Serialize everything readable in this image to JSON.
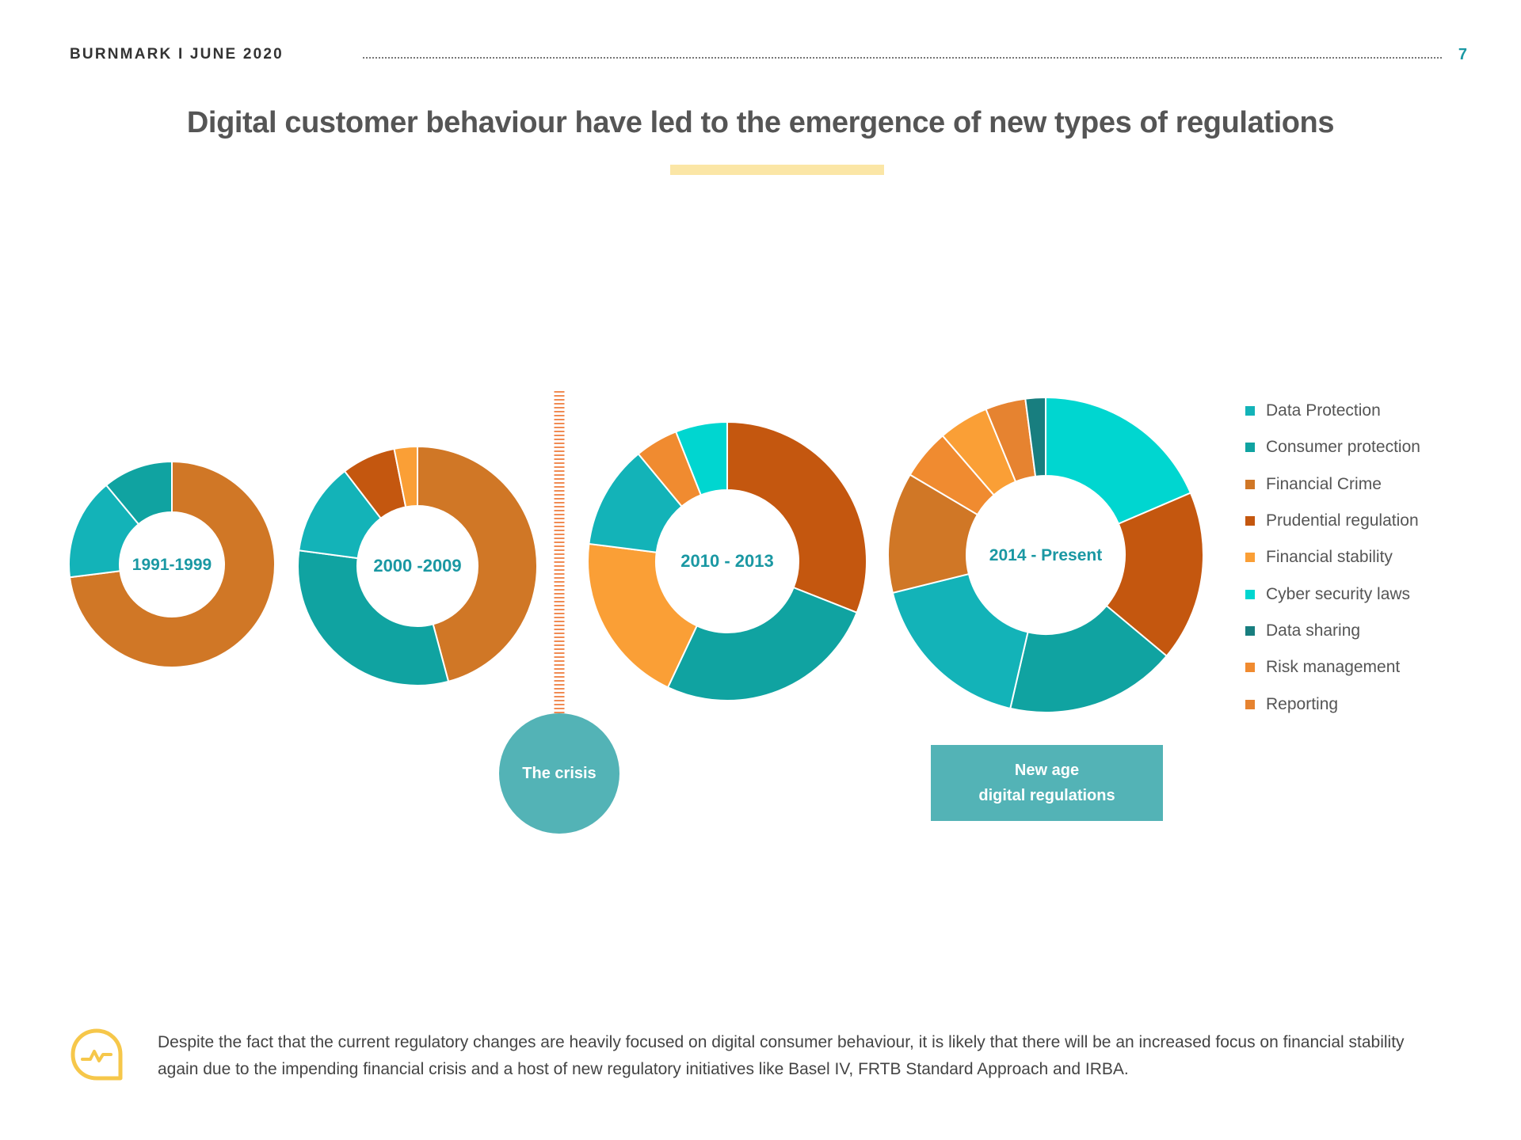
{
  "header": {
    "brand_date": "BURNMARK I JUNE 2020",
    "page_number": "7"
  },
  "title": "Digital customer behaviour have led to the emergence of new types of regulations",
  "legend": [
    {
      "label": "Data Protection",
      "color": "#13b3b8"
    },
    {
      "label": "Consumer protection",
      "color": "#10a3a1"
    },
    {
      "label": "Financial Crime",
      "color": "#d07726"
    },
    {
      "label": "Prudential regulation",
      "color": "#c4570f"
    },
    {
      "label": "Financial stability",
      "color": "#fa9f36"
    },
    {
      "label": "Cyber security laws",
      "color": "#00d6d0"
    },
    {
      "label": "Data sharing",
      "color": "#187e7f"
    },
    {
      "label": "Risk management",
      "color": "#f08b30"
    },
    {
      "label": "Reporting",
      "color": "#e68330"
    }
  ],
  "chart_data": [
    {
      "type": "pie",
      "donut": true,
      "label": "1991-1999",
      "slices": [
        {
          "category": "Financial Crime",
          "value": 73
        },
        {
          "category": "Data Protection",
          "value": 16
        },
        {
          "category": "Consumer protection",
          "value": 11
        }
      ]
    },
    {
      "type": "pie",
      "donut": true,
      "label": "2000 -2009",
      "slices": [
        {
          "category": "Financial Crime",
          "value": 44
        },
        {
          "category": "Consumer protection",
          "value": 30
        },
        {
          "category": "Data Protection",
          "value": 12
        },
        {
          "category": "Prudential regulation",
          "value": 7
        },
        {
          "category": "Financial stability",
          "value": 3
        }
      ]
    },
    {
      "type": "pie",
      "donut": true,
      "label": "2010 - 2013",
      "slices": [
        {
          "category": "Prudential regulation",
          "value": 31
        },
        {
          "category": "Consumer protection",
          "value": 26
        },
        {
          "category": "Financial stability",
          "value": 20
        },
        {
          "category": "Data Protection",
          "value": 12
        },
        {
          "category": "Risk management",
          "value": 5
        },
        {
          "category": "Cyber security laws",
          "value": 6
        }
      ]
    },
    {
      "type": "pie",
      "donut": true,
      "label": "2014 - Present",
      "slices": [
        {
          "category": "Cyber security laws",
          "value": 18
        },
        {
          "category": "Prudential regulation",
          "value": 17
        },
        {
          "category": "Consumer protection",
          "value": 17
        },
        {
          "category": "Data Protection",
          "value": 17
        },
        {
          "category": "Financial Crime",
          "value": 12
        },
        {
          "category": "Risk management",
          "value": 5
        },
        {
          "category": "Financial stability",
          "value": 5
        },
        {
          "category": "Reporting",
          "value": 4
        },
        {
          "category": "Data sharing",
          "value": 2
        }
      ]
    }
  ],
  "annotations": {
    "crisis": "The crisis",
    "new_age_line1": "New age",
    "new_age_line2": "digital regulations"
  },
  "footer": {
    "text": "Despite the fact that the current regulatory changes are heavily focused on digital consumer behaviour, it is likely that there will be an increased focus on financial stability again due to the impending financial crisis and a host of new regulatory initiatives like Basel IV, FRTB Standard Approach and IRBA."
  },
  "colors": {
    "accent_teal": "#53b3b6",
    "label_teal": "#1a98a3",
    "crisis_line": "#f08b53",
    "title_underline": "#fbe6a6",
    "footer_icon": "#f6c74a"
  }
}
